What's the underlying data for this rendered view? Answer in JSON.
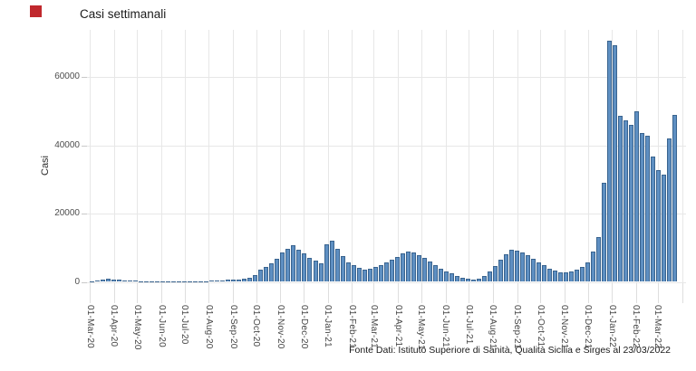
{
  "colors": {
    "bar_fill": "#5e8fc2",
    "bar_border": "#3a648f",
    "grid": "#e7e7e7",
    "axis_text": "#4d4d4d",
    "red_marker": "#c0282d"
  },
  "chart_data": {
    "type": "bar",
    "title": "Casi settimanali",
    "ylabel": "Casi",
    "xlabel": "",
    "source_note": "Fonte Dati: Istituto Superiore di Sanità, Qualità Sicilia e Sirges al 23/03/2022",
    "y_ticks": [
      0,
      20000,
      40000,
      60000
    ],
    "ylim": [
      0,
      72000
    ],
    "grid": true,
    "legend": "none",
    "x_tick_labels": [
      "01-Mar-20",
      "01-Apr-20",
      "01-May-20",
      "01-Jun-20",
      "01-Jul-20",
      "01-Aug-20",
      "01-Sep-20",
      "01-Oct-20",
      "01-Nov-20",
      "01-Dec-20",
      "01-Jan-21",
      "01-Feb-21",
      "01-Mar-21",
      "01-Apr-21",
      "01-May-21",
      "01-Jun-21",
      "01-Jul-21",
      "01-Aug-21",
      "01-Sep-21",
      "01-Oct-21",
      "01-Nov-21",
      "01-Dec-21",
      "01-Jan-22",
      "01-Feb-22",
      "01-Mar-22"
    ],
    "x_unit": "week",
    "first_week_label": "01-Mar-20",
    "weekly_values": [
      150,
      450,
      700,
      800,
      750,
      650,
      500,
      400,
      300,
      220,
      160,
      120,
      90,
      70,
      60,
      50,
      45,
      55,
      75,
      110,
      170,
      240,
      320,
      400,
      480,
      540,
      600,
      660,
      800,
      1100,
      2000,
      3500,
      4300,
      5400,
      6700,
      8500,
      9800,
      10700,
      9400,
      8400,
      7100,
      6200,
      5400,
      11000,
      12100,
      9700,
      7600,
      5800,
      4800,
      4100,
      3600,
      3800,
      4300,
      4900,
      5700,
      6500,
      7300,
      8300,
      9000,
      8600,
      7800,
      6900,
      5900,
      4900,
      3900,
      3100,
      2400,
      1800,
      1300,
      900,
      700,
      900,
      1700,
      3100,
      4600,
      6400,
      8200,
      9500,
      9100,
      8700,
      7800,
      6700,
      5700,
      4800,
      3900,
      3300,
      2800,
      2700,
      3000,
      3600,
      4400,
      5800,
      8800,
      13200,
      29100,
      70700,
      69200,
      48500,
      47300,
      45900,
      49900,
      43700,
      42800,
      36600,
      32600,
      31300,
      41900,
      49000
    ]
  }
}
